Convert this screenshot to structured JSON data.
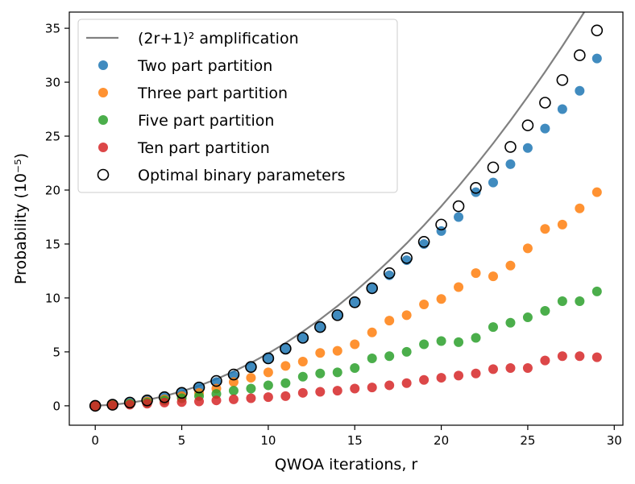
{
  "chart_data": {
    "type": "scatter",
    "title": "",
    "xlabel": "QWOA iterations, r",
    "ylabel": "Probability (10⁻⁵)",
    "xlim": [
      -1.5,
      30.5
    ],
    "ylim": [
      -1.8,
      36.5
    ],
    "x_ticks": [
      0,
      5,
      10,
      15,
      20,
      25,
      30
    ],
    "y_ticks": [
      0,
      5,
      10,
      15,
      20,
      25,
      30,
      35
    ],
    "grid": false,
    "legend_position": "top-left",
    "series": [
      {
        "name": "(2r+1)² amplification",
        "kind": "line",
        "color": "#808080",
        "x": [
          0,
          1,
          2,
          3,
          4,
          5,
          6,
          7,
          8,
          9,
          10,
          11,
          12,
          13,
          14,
          15,
          16,
          17,
          18,
          19,
          20,
          21,
          22,
          23,
          24,
          25,
          26,
          27,
          28,
          29
        ],
        "values": [
          0.01,
          0.1,
          0.28,
          0.54,
          0.9,
          1.34,
          1.86,
          2.48,
          3.19,
          3.98,
          4.86,
          5.82,
          6.88,
          8.02,
          9.25,
          10.57,
          11.98,
          13.48,
          15.06,
          16.74,
          18.5,
          20.35,
          22.3,
          24.33,
          26.45,
          28.66,
          30.96,
          33.35,
          35.82,
          38.39
        ]
      },
      {
        "name": "Two part partition",
        "kind": "scatter",
        "color": "#1f77b4",
        "x": [
          0,
          1,
          2,
          3,
          4,
          5,
          6,
          7,
          8,
          9,
          10,
          11,
          12,
          13,
          14,
          15,
          16,
          17,
          18,
          19,
          20,
          21,
          22,
          23,
          24,
          25,
          26,
          27,
          28,
          29
        ],
        "values": [
          0.0,
          0.1,
          0.3,
          0.5,
          0.8,
          1.2,
          1.7,
          2.2,
          2.8,
          3.6,
          4.4,
          5.3,
          6.3,
          7.3,
          8.4,
          9.6,
          10.9,
          12.1,
          13.5,
          15.0,
          16.2,
          17.5,
          19.8,
          20.7,
          22.4,
          23.9,
          25.7,
          27.5,
          29.2,
          32.2
        ]
      },
      {
        "name": "Three part partition",
        "kind": "scatter",
        "color": "#ff7f0e",
        "x": [
          0,
          1,
          2,
          3,
          4,
          5,
          6,
          7,
          8,
          9,
          10,
          11,
          12,
          13,
          14,
          15,
          16,
          17,
          18,
          19,
          20,
          21,
          22,
          23,
          24,
          25,
          26,
          27,
          28,
          29
        ],
        "values": [
          0.0,
          0.1,
          0.2,
          0.4,
          0.6,
          0.9,
          1.2,
          1.6,
          2.2,
          2.6,
          3.1,
          3.7,
          4.1,
          4.9,
          5.1,
          5.7,
          6.8,
          7.9,
          8.4,
          9.4,
          9.9,
          11.0,
          12.3,
          12.0,
          13.0,
          14.6,
          16.4,
          16.8,
          18.3,
          19.8
        ]
      },
      {
        "name": "Five part partition",
        "kind": "scatter",
        "color": "#2ca02c",
        "x": [
          0,
          1,
          2,
          3,
          4,
          5,
          6,
          7,
          8,
          9,
          10,
          11,
          12,
          13,
          14,
          15,
          16,
          17,
          18,
          19,
          20,
          21,
          22,
          23,
          24,
          25,
          26,
          27,
          28,
          29
        ],
        "values": [
          0.0,
          0.1,
          0.2,
          0.3,
          0.5,
          0.7,
          0.9,
          1.1,
          1.4,
          1.6,
          1.9,
          2.1,
          2.7,
          3.0,
          3.1,
          3.5,
          4.4,
          4.6,
          5.0,
          5.7,
          6.0,
          5.9,
          6.3,
          7.3,
          7.7,
          8.2,
          8.8,
          9.7,
          9.7,
          10.6
        ]
      },
      {
        "name": "Ten part partition",
        "kind": "scatter",
        "color": "#d62728",
        "x": [
          0,
          1,
          2,
          3,
          4,
          5,
          6,
          7,
          8,
          9,
          10,
          11,
          12,
          13,
          14,
          15,
          16,
          17,
          18,
          19,
          20,
          21,
          22,
          23,
          24,
          25,
          26,
          27,
          28,
          29
        ],
        "values": [
          0.0,
          0.05,
          0.1,
          0.2,
          0.3,
          0.35,
          0.4,
          0.5,
          0.6,
          0.7,
          0.8,
          0.9,
          1.2,
          1.3,
          1.4,
          1.6,
          1.7,
          1.9,
          2.1,
          2.4,
          2.6,
          2.8,
          3.0,
          3.4,
          3.5,
          3.5,
          4.2,
          4.6,
          4.6,
          4.5
        ]
      },
      {
        "name": "Optimal binary parameters",
        "kind": "open-circle",
        "color": "#000000",
        "x": [
          0,
          1,
          2,
          3,
          4,
          5,
          6,
          7,
          8,
          9,
          10,
          11,
          12,
          13,
          14,
          15,
          16,
          17,
          18,
          19,
          20,
          21,
          22,
          23,
          24,
          25,
          26,
          27,
          28,
          29
        ],
        "values": [
          0.0,
          0.1,
          0.3,
          0.5,
          0.8,
          1.2,
          1.7,
          2.3,
          2.9,
          3.6,
          4.4,
          5.3,
          6.3,
          7.3,
          8.4,
          9.6,
          10.9,
          12.3,
          13.7,
          15.2,
          16.8,
          18.5,
          20.2,
          22.1,
          24.0,
          26.0,
          28.1,
          30.2,
          32.5,
          34.8
        ]
      }
    ]
  }
}
